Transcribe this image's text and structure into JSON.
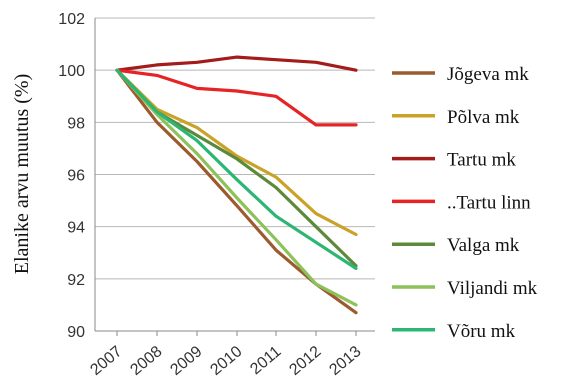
{
  "chart_data": {
    "type": "line",
    "title": "",
    "xlabel": "",
    "ylabel": "Elanike arvu muutus (%)",
    "x": [
      "2007",
      "2008",
      "2009",
      "2010",
      "2011",
      "2012",
      "2013"
    ],
    "ylim": [
      90,
      102
    ],
    "yticks": [
      "90",
      "92",
      "94",
      "96",
      "98",
      "100",
      "102"
    ],
    "grid": "horizontal",
    "legend_position": "right",
    "series": [
      {
        "name": "Jõgeva mk",
        "color": "#9C5A2E",
        "values": [
          100,
          98.0,
          96.5,
          94.8,
          93.1,
          91.8,
          90.7
        ]
      },
      {
        "name": "Põlva mk",
        "color": "#C9A227",
        "values": [
          100,
          98.5,
          97.8,
          96.7,
          95.9,
          94.5,
          93.7
        ]
      },
      {
        "name": "Tartu mk",
        "color": "#A31B1B",
        "values": [
          100,
          100.2,
          100.3,
          100.5,
          100.4,
          100.3,
          100.0
        ]
      },
      {
        "name": "..Tartu linn",
        "color": "#E62325",
        "values": [
          100,
          99.8,
          99.3,
          99.2,
          99.0,
          97.9,
          97.9
        ]
      },
      {
        "name": "Valga mk",
        "color": "#5C8A3A",
        "values": [
          100,
          98.4,
          97.5,
          96.6,
          95.5,
          94.0,
          92.5
        ]
      },
      {
        "name": "Viljandi mk",
        "color": "#8DC25A",
        "values": [
          100,
          98.3,
          96.8,
          95.1,
          93.5,
          91.8,
          91.0
        ]
      },
      {
        "name": "Võru mk",
        "color": "#2BB673",
        "values": [
          100,
          98.4,
          97.3,
          95.8,
          94.4,
          93.4,
          92.4
        ]
      }
    ]
  }
}
